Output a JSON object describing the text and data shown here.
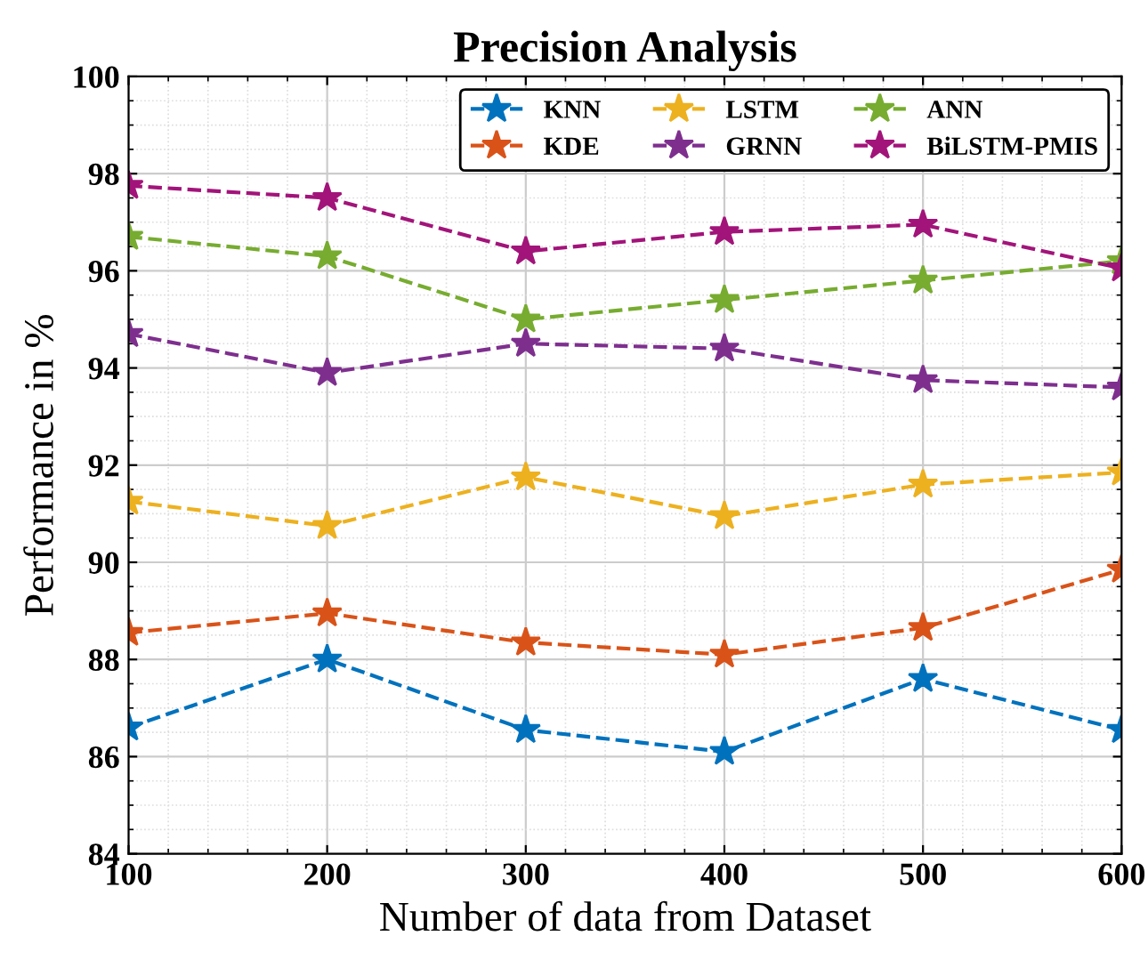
{
  "chart_data": {
    "type": "line",
    "title": "Precision Analysis",
    "xlabel": "Number of data from Dataset",
    "ylabel": "Performance in %",
    "x": [
      100,
      200,
      300,
      400,
      500,
      600
    ],
    "series": [
      {
        "name": "KNN",
        "color": "#0072bd",
        "values": [
          86.6,
          88.0,
          86.55,
          86.1,
          87.6,
          86.55
        ]
      },
      {
        "name": "KDE",
        "color": "#d95319",
        "values": [
          88.55,
          88.95,
          88.35,
          88.1,
          88.65,
          89.85
        ]
      },
      {
        "name": "LSTM",
        "color": "#edb120",
        "values": [
          91.25,
          90.75,
          91.75,
          90.95,
          91.6,
          91.85
        ]
      },
      {
        "name": "GRNN",
        "color": "#7e2f8e",
        "values": [
          94.7,
          93.9,
          94.5,
          94.4,
          93.75,
          93.6
        ]
      },
      {
        "name": "ANN",
        "color": "#77ac30",
        "values": [
          96.7,
          96.3,
          95.0,
          95.4,
          95.8,
          96.2
        ]
      },
      {
        "name": "BiLSTM-PMIS",
        "color": "#a2147a",
        "values": [
          97.75,
          97.5,
          96.4,
          96.8,
          96.95,
          96.05
        ]
      }
    ],
    "xlim": [
      100,
      600
    ],
    "xticks": [
      100,
      200,
      300,
      400,
      500,
      600
    ],
    "ylim": [
      84,
      100
    ],
    "yticks": [
      84,
      86,
      88,
      90,
      92,
      94,
      96,
      98,
      100
    ],
    "grid": true,
    "legend": "top right",
    "marker": "star",
    "line_style": "dashed"
  }
}
